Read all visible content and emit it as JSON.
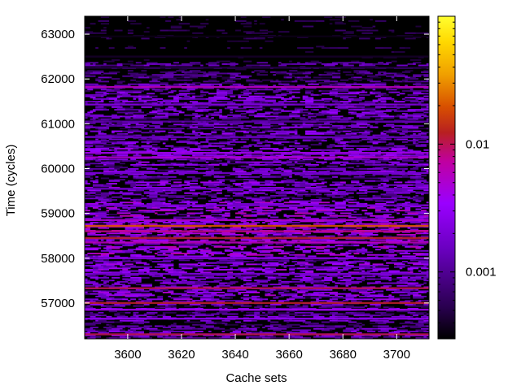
{
  "chart_data": {
    "type": "heatmap",
    "title": "",
    "xlabel": "Cache sets",
    "ylabel": "Time (cycles)",
    "xlim": [
      3584,
      3712
    ],
    "ylim": [
      56200,
      63400
    ],
    "x_ticks": [
      3600,
      3620,
      3640,
      3660,
      3680,
      3700
    ],
    "y_ticks": [
      57000,
      58000,
      59000,
      60000,
      61000,
      62000,
      63000
    ],
    "colorbar": {
      "scale": "log",
      "range": [
        0.0003,
        0.1
      ],
      "ticks": [
        {
          "value": 0.001,
          "label": "0.001"
        },
        {
          "value": 0.01,
          "label": "0.01"
        }
      ],
      "colormap": [
        "#000000",
        "#4a0080",
        "#8a00e8",
        "#c000c0",
        "#e0302a",
        "#f08a00",
        "#ffd800",
        "#ffff40"
      ]
    },
    "bands": [
      {
        "y": 62950,
        "level": 0.00035
      },
      {
        "y": 62500,
        "level": 0.0004
      },
      {
        "y": 62250,
        "level": 0.0005
      },
      {
        "y": 61820,
        "level": 0.006
      },
      {
        "y": 61430,
        "level": 0.002
      },
      {
        "y": 61050,
        "level": 0.0012
      },
      {
        "y": 60700,
        "level": 0.0015
      },
      {
        "y": 60350,
        "level": 0.004
      },
      {
        "y": 60250,
        "level": 0.005
      },
      {
        "y": 59900,
        "level": 0.0018
      },
      {
        "y": 59550,
        "level": 0.0016
      },
      {
        "y": 59180,
        "level": 0.002
      },
      {
        "y": 58850,
        "level": 0.005
      },
      {
        "y": 58720,
        "level": 0.02
      },
      {
        "y": 58600,
        "level": 0.008
      },
      {
        "y": 58450,
        "level": 0.012
      },
      {
        "y": 58350,
        "level": 0.006
      },
      {
        "y": 58000,
        "level": 0.0025
      },
      {
        "y": 57650,
        "level": 0.002
      },
      {
        "y": 57330,
        "level": 0.01
      },
      {
        "y": 57000,
        "level": 0.012
      },
      {
        "y": 56850,
        "level": 0.004
      },
      {
        "y": 56650,
        "level": 0.003
      },
      {
        "y": 56300,
        "level": 0.01
      }
    ]
  }
}
